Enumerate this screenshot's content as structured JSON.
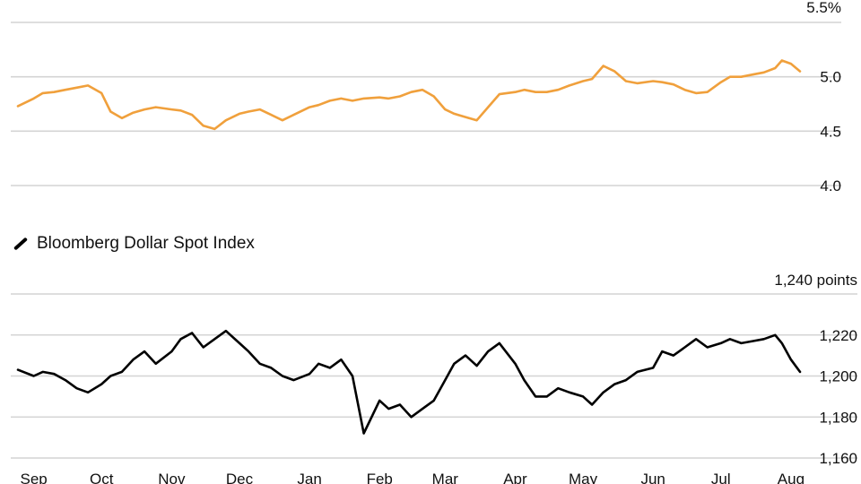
{
  "colors": {
    "series1": "#f0a03c",
    "series2": "#000000",
    "grid": "#d4d4d4"
  },
  "chart_data": [
    {
      "type": "line",
      "title": "",
      "y_unit_label": "5.5%",
      "ylim": [
        4.0,
        5.5
      ],
      "y_ticks": [
        4.0,
        4.5,
        5.0
      ],
      "y_tick_labels": [
        "4.0",
        "4.5",
        "5.0"
      ],
      "grid": true,
      "series": [
        {
          "color": "#f0a03c",
          "x": [
            "2023-08-25",
            "2023-09-01",
            "2023-09-05",
            "2023-09-10",
            "2023-09-15",
            "2023-09-20",
            "2023-09-25",
            "2023-10-01",
            "2023-10-05",
            "2023-10-10",
            "2023-10-15",
            "2023-10-20",
            "2023-10-25",
            "2023-11-01",
            "2023-11-05",
            "2023-11-10",
            "2023-11-15",
            "2023-11-20",
            "2023-11-25",
            "2023-12-01",
            "2023-12-05",
            "2023-12-10",
            "2023-12-15",
            "2023-12-20",
            "2023-12-25",
            "2024-01-01",
            "2024-01-05",
            "2024-01-10",
            "2024-01-15",
            "2024-01-20",
            "2024-01-25",
            "2024-02-01",
            "2024-02-05",
            "2024-02-10",
            "2024-02-15",
            "2024-02-20",
            "2024-02-25",
            "2024-03-01",
            "2024-03-05",
            "2024-03-10",
            "2024-03-15",
            "2024-03-20",
            "2024-03-25",
            "2024-04-01",
            "2024-04-05",
            "2024-04-10",
            "2024-04-15",
            "2024-04-20",
            "2024-04-25",
            "2024-05-01",
            "2024-05-05",
            "2024-05-10",
            "2024-05-15",
            "2024-05-20",
            "2024-05-25",
            "2024-06-01",
            "2024-06-05",
            "2024-06-10",
            "2024-06-15",
            "2024-06-20",
            "2024-06-25",
            "2024-07-01",
            "2024-07-05",
            "2024-07-10",
            "2024-07-15",
            "2024-07-20",
            "2024-07-25",
            "2024-07-28",
            "2024-08-01",
            "2024-08-05"
          ],
          "values": [
            4.73,
            4.8,
            4.85,
            4.86,
            4.88,
            4.9,
            4.92,
            4.85,
            4.68,
            4.62,
            4.67,
            4.7,
            4.72,
            4.7,
            4.69,
            4.65,
            4.55,
            4.52,
            4.6,
            4.66,
            4.68,
            4.7,
            4.65,
            4.6,
            4.65,
            4.72,
            4.74,
            4.78,
            4.8,
            4.78,
            4.8,
            4.81,
            4.8,
            4.82,
            4.86,
            4.88,
            4.82,
            4.7,
            4.66,
            4.63,
            4.6,
            4.72,
            4.84,
            4.86,
            4.88,
            4.86,
            4.86,
            4.88,
            4.92,
            4.96,
            4.98,
            5.1,
            5.05,
            4.96,
            4.94,
            4.96,
            4.95,
            4.93,
            4.88,
            4.85,
            4.86,
            4.95,
            5.0,
            5.0,
            5.02,
            5.04,
            5.08,
            5.15,
            5.12,
            5.05
          ]
        }
      ]
    },
    {
      "type": "line",
      "title": "",
      "y_unit_label": "1,240 points",
      "ylim": [
        1160,
        1240
      ],
      "y_ticks": [
        1160,
        1180,
        1200,
        1220
      ],
      "y_tick_labels": [
        "1,160",
        "1,180",
        "1,200",
        "1,220"
      ],
      "x_tick_labels": [
        "Sep",
        "Oct",
        "Nov",
        "Dec",
        "Jan",
        "Feb",
        "Mar",
        "Apr",
        "May",
        "Jun",
        "Jul",
        "Aug"
      ],
      "grid": true,
      "series": [
        {
          "name": "Bloomberg Dollar Spot Index",
          "color": "#000000",
          "x": [
            "2023-08-25",
            "2023-09-01",
            "2023-09-05",
            "2023-09-10",
            "2023-09-15",
            "2023-09-20",
            "2023-09-25",
            "2023-10-01",
            "2023-10-05",
            "2023-10-10",
            "2023-10-15",
            "2023-10-20",
            "2023-10-25",
            "2023-11-01",
            "2023-11-05",
            "2023-11-10",
            "2023-11-15",
            "2023-11-20",
            "2023-11-25",
            "2023-12-01",
            "2023-12-05",
            "2023-12-10",
            "2023-12-15",
            "2023-12-20",
            "2023-12-25",
            "2024-01-01",
            "2024-01-05",
            "2024-01-10",
            "2024-01-15",
            "2024-01-20",
            "2024-01-25",
            "2024-02-01",
            "2024-02-05",
            "2024-02-10",
            "2024-02-15",
            "2024-02-20",
            "2024-02-25",
            "2024-03-01",
            "2024-03-05",
            "2024-03-10",
            "2024-03-15",
            "2024-03-20",
            "2024-03-25",
            "2024-04-01",
            "2024-04-05",
            "2024-04-10",
            "2024-04-15",
            "2024-04-20",
            "2024-04-25",
            "2024-05-01",
            "2024-05-05",
            "2024-05-10",
            "2024-05-15",
            "2024-05-20",
            "2024-05-25",
            "2024-06-01",
            "2024-06-05",
            "2024-06-10",
            "2024-06-15",
            "2024-06-20",
            "2024-06-25",
            "2024-07-01",
            "2024-07-05",
            "2024-07-10",
            "2024-07-15",
            "2024-07-20",
            "2024-07-25",
            "2024-07-28",
            "2024-08-01",
            "2024-08-05"
          ],
          "values": [
            1203,
            1200,
            1202,
            1201,
            1198,
            1194,
            1192,
            1196,
            1200,
            1202,
            1208,
            1212,
            1206,
            1212,
            1218,
            1221,
            1214,
            1218,
            1222,
            1216,
            1212,
            1206,
            1204,
            1200,
            1198,
            1201,
            1206,
            1204,
            1208,
            1200,
            1172,
            1188,
            1184,
            1186,
            1180,
            1184,
            1188,
            1198,
            1206,
            1210,
            1205,
            1212,
            1216,
            1206,
            1198,
            1190,
            1190,
            1194,
            1192,
            1190,
            1186,
            1192,
            1196,
            1198,
            1202,
            1204,
            1212,
            1210,
            1214,
            1218,
            1214,
            1216,
            1218,
            1216,
            1217,
            1218,
            1220,
            1216,
            1208,
            1202
          ]
        }
      ]
    }
  ]
}
